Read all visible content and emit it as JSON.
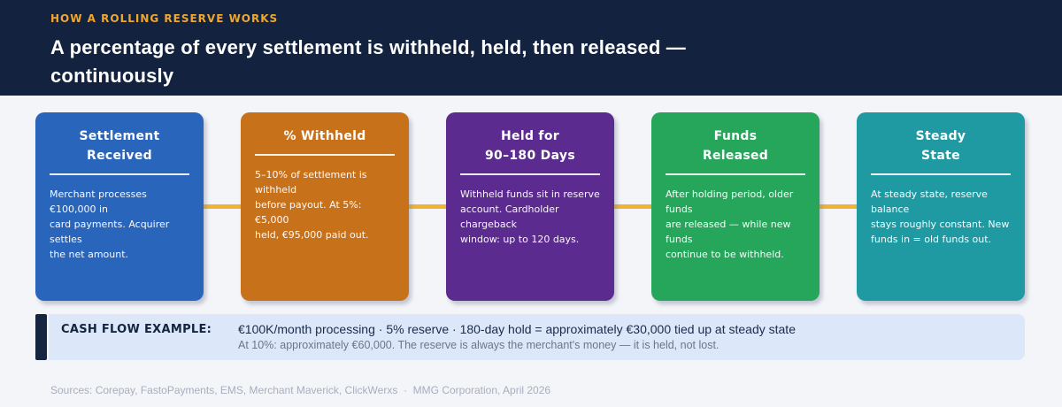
{
  "header": {
    "kicker": "HOW A ROLLING RESERVE WORKS",
    "title": "A percentage of every settlement is withheld, held, then released —\ncontinuously"
  },
  "cards": [
    {
      "title": "Settlement\nReceived",
      "body": "Merchant processes €100,000 in\ncard payments. Acquirer settles\nthe net amount.",
      "color": "#2A65BC"
    },
    {
      "title": "% Withheld",
      "body": "5–10% of settlement is withheld\nbefore payout. At 5%: €5,000\nheld, €95,000 paid out.",
      "color": "#C8711B"
    },
    {
      "title": "Held for\n90–180 Days",
      "body": "Withheld funds sit in reserve\naccount. Cardholder chargeback\nwindow: up to 120 days.",
      "color": "#5B2B8F"
    },
    {
      "title": "Funds\nReleased",
      "body": "After holding period, older funds\nare released — while new funds\ncontinue to be withheld.",
      "color": "#26A65B"
    },
    {
      "title": "Steady\nState",
      "body": "At steady state, reserve balance\nstays roughly constant. New\nfunds in = old funds out.",
      "color": "#1F9AA3"
    }
  ],
  "callout": {
    "label": "CASH FLOW EXAMPLE:",
    "line1": "€100K/month processing · 5% reserve · 180-day hold = approximately €30,000 tied up at steady state",
    "line2": "At 10%: approximately €60,000. The reserve is always the merchant's money — it is held, not lost."
  },
  "footer": {
    "sources": "Sources: Corepay, FastoPayments, EMS, Merchant Maverick, ClickWerxs  ·  MMG Corporation, April 2026"
  },
  "colors": {
    "header_bg": "#13233F",
    "kicker": "#EFA72E",
    "page_bg": "#F4F5F9",
    "connector": "#F2B233",
    "callout_bg": "#DCE8FA",
    "callout_bar": "#15243F",
    "callout_text": "#1B2A4A",
    "callout_secondary": "#6C7689",
    "footer_text": "#A8AEBD"
  }
}
